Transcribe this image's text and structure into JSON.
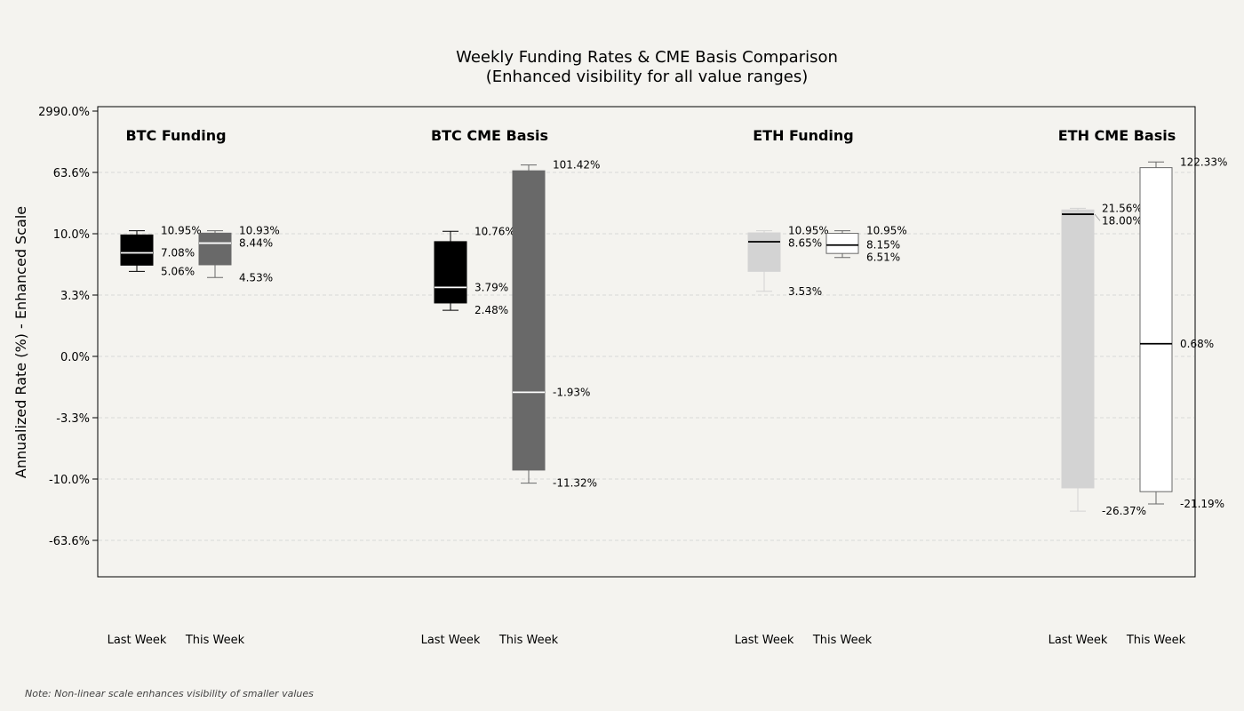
{
  "chart_data": {
    "type": "box",
    "title": "Weekly Funding Rates & CME Basis Comparison",
    "subtitle": "(Enhanced visibility for all value ranges)",
    "ylabel": "Annualized Rate (%) - Enhanced Scale",
    "y_scale": "non-linear (enhanced)",
    "y_tick_labels": [
      "2990.0%",
      "63.6%",
      "10.0%",
      "3.3%",
      "0.0%",
      "-3.3%",
      "-10.0%",
      "-63.6%"
    ],
    "note": "Note: Non-linear scale enhances visibility of smaller values",
    "groups": [
      {
        "name": "BTC Funding",
        "boxes": [
          {
            "label": "Last Week",
            "color": "#000000",
            "median_color": "#ffffff",
            "whisker_color": "#000000",
            "max": 10.95,
            "median": 7.08,
            "min": 5.06,
            "max_label": "10.95%",
            "median_label": "7.08%",
            "min_label": "5.06%"
          },
          {
            "label": "This Week",
            "color": "#696969",
            "median_color": "#ffffff",
            "whisker_color": "#696969",
            "max": 10.93,
            "median": 8.44,
            "min": 4.53,
            "max_label": "10.93%",
            "median_label": "8.44%",
            "min_label": "4.53%"
          }
        ]
      },
      {
        "name": "BTC CME Basis",
        "boxes": [
          {
            "label": "Last Week",
            "color": "#000000",
            "median_color": "#ffffff",
            "whisker_color": "#000000",
            "max": 10.76,
            "median": 3.79,
            "min": 2.48,
            "max_label": "10.76%",
            "median_label": "3.79%",
            "min_label": "2.48%"
          },
          {
            "label": "This Week",
            "color": "#696969",
            "median_color": "#ffffff",
            "whisker_color": "#696969",
            "max": 101.42,
            "median": -1.93,
            "min": -11.32,
            "max_label": "101.42%",
            "median_label": "-1.93%",
            "min_label": "-11.32%"
          }
        ]
      },
      {
        "name": "ETH Funding",
        "boxes": [
          {
            "label": "Last Week",
            "color": "#d3d3d3",
            "median_color": "#000000",
            "whisker_color": "#d3d3d3",
            "max": 10.95,
            "median": 8.65,
            "min": 3.53,
            "max_label": "10.95%",
            "median_label": "8.65%",
            "min_label": "3.53%"
          },
          {
            "label": "This Week",
            "color": "#ffffff",
            "median_color": "#000000",
            "whisker_color": "#696969",
            "max": 10.95,
            "median": 8.15,
            "min": 6.51,
            "max_label": "10.95%",
            "median_label": "8.15%",
            "min_label": "6.51%"
          }
        ]
      },
      {
        "name": "ETH CME Basis",
        "boxes": [
          {
            "label": "Last Week",
            "color": "#d3d3d3",
            "median_color": "#000000",
            "whisker_color": "#d3d3d3",
            "max": 21.56,
            "median": 18.0,
            "min": -26.37,
            "max_label": "21.56%",
            "median_label": "18.00%",
            "min_label": "-26.37%"
          },
          {
            "label": "This Week",
            "color": "#ffffff",
            "median_color": "#000000",
            "whisker_color": "#696969",
            "max": 122.33,
            "median": 0.68,
            "min": -21.19,
            "max_label": "122.33%",
            "median_label": "0.68%",
            "min_label": "-21.19%"
          }
        ]
      }
    ]
  }
}
